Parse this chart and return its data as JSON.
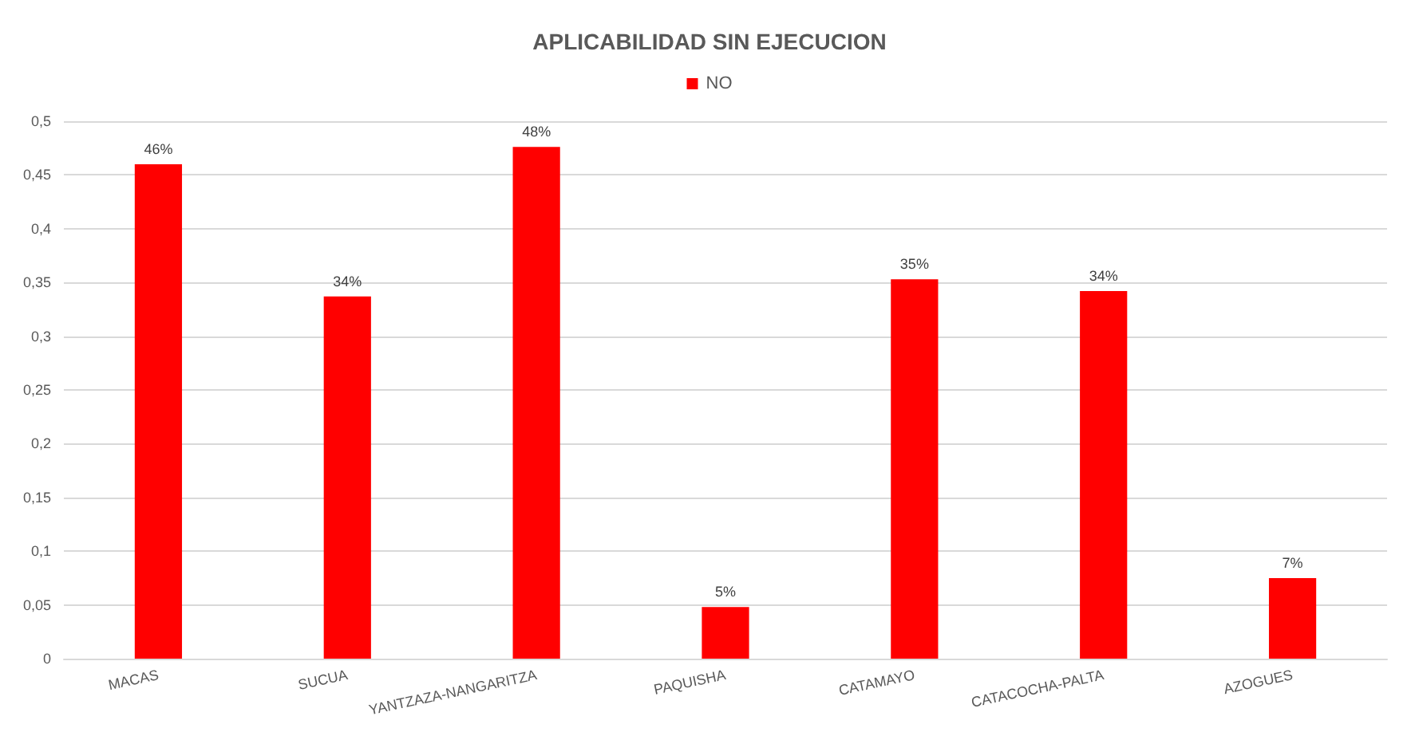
{
  "chart_data": {
    "type": "bar",
    "title": "APLICABILIDAD SIN EJECUCION",
    "categories": [
      "MACAS",
      "SUCUA",
      "YANTZAZA-NANGARITZA",
      "PAQUISHA",
      "CATAMAYO",
      "CATACOCHA-PALTA",
      "AZOGUES"
    ],
    "series": [
      {
        "name": "NO",
        "color": "#ff0000",
        "values": [
          0.46,
          0.337,
          0.476,
          0.048,
          0.353,
          0.342,
          0.075
        ],
        "value_labels": [
          "46%",
          "34%",
          "48%",
          "5%",
          "35%",
          "34%",
          "7%"
        ]
      }
    ],
    "ylim": [
      0,
      0.5
    ],
    "yticks": [
      0,
      {
        "value": 0.05,
        "label": "0,05"
      },
      {
        "value": 0.1,
        "label": "0,1"
      },
      {
        "value": 0.15,
        "label": "0,15"
      },
      {
        "value": 0.2,
        "label": "0,2"
      },
      {
        "value": 0.25,
        "label": "0,25"
      },
      {
        "value": 0.3,
        "label": "0,3"
      },
      {
        "value": 0.35,
        "label": "0,35"
      },
      {
        "value": 0.4,
        "label": "0,4"
      },
      {
        "value": 0.45,
        "label": "0,45"
      },
      {
        "value": 0.5,
        "label": "0,5"
      }
    ],
    "grid": "y",
    "legend": "top"
  }
}
